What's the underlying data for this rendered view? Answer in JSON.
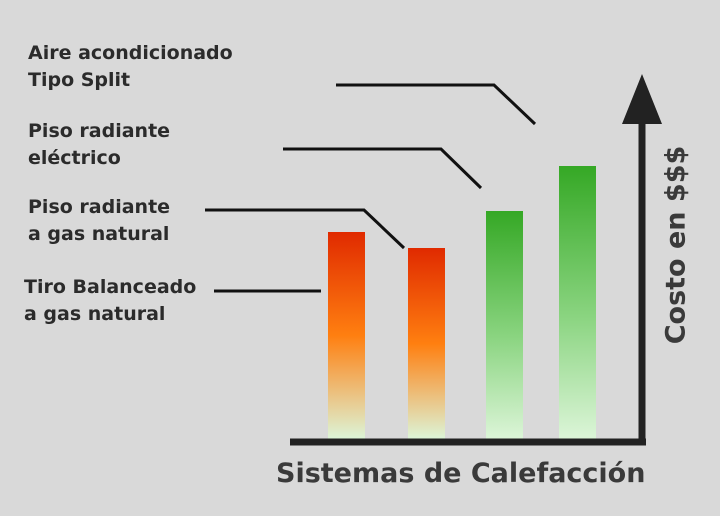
{
  "chart_data": {
    "type": "bar",
    "categories": [
      "Tiro Balanceado\na gas natural",
      "Piso radiante\na gas natural",
      "Piso radiante\neléctrico",
      "Aire acondicionado\nTipo Split"
    ],
    "values": [
      207,
      191,
      228,
      273
    ],
    "xlabel": "Sistemas de Calefacción",
    "ylabel": "Costo en $$$",
    "bar_colors": [
      [
        "#e02a00",
        "#ff7f10",
        "#dcf5d8"
      ],
      [
        "#e02a00",
        "#ff7f10",
        "#dcf5d8"
      ],
      [
        "#35a825",
        "#8ad480",
        "#dcf5d8"
      ],
      [
        "#35a825",
        "#8ad480",
        "#dcf5d8"
      ]
    ],
    "axis_color": "#222222",
    "grid": false,
    "legend": "none"
  }
}
